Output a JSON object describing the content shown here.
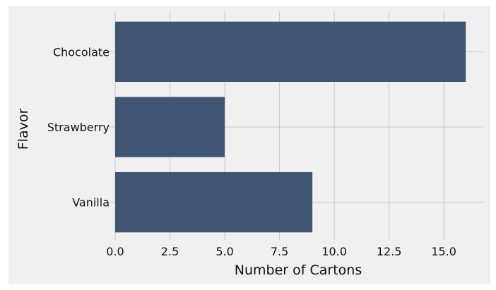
{
  "chart_data": {
    "type": "bar",
    "orientation": "horizontal",
    "categories": [
      "Chocolate",
      "Strawberry",
      "Vanilla"
    ],
    "values": [
      16,
      5,
      9
    ],
    "xlabel": "Number of Cartons",
    "ylabel": "Flavor",
    "xlim": [
      0,
      16.8
    ],
    "xticks": [
      "0.0",
      "2.5",
      "5.0",
      "7.5",
      "10.0",
      "12.5",
      "15.0"
    ],
    "xtick_values": [
      0,
      2.5,
      5,
      7.5,
      10,
      12.5,
      15
    ],
    "grid": true,
    "bar_color": "#3a4f6e",
    "background": "#f0f0f0"
  }
}
